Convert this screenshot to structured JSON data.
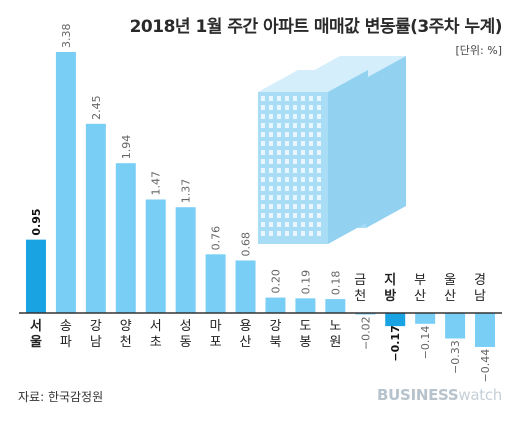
{
  "header": {
    "title": "2018년 1월 주간 아파트 매매값 변동률(3주차 누계)",
    "unit": "[단위: %]"
  },
  "footer": {
    "source": "자료: 한국감정원",
    "brand_bold": "BUSINESS",
    "brand_light": "watch"
  },
  "colors": {
    "highlight": "#1aa3e3",
    "normal": "#79cef6",
    "building": "#a9dcf5",
    "axis": "#333333"
  },
  "chart_data": {
    "type": "bar",
    "title": "2018년 1월 주간 아파트 매매값 변동률(3주차 누계)",
    "unit": "%",
    "categories": [
      "서울",
      "송파",
      "강남",
      "양천",
      "서초",
      "성동",
      "마포",
      "용산",
      "강북",
      "도봉",
      "노원",
      "금천",
      "지방",
      "부산",
      "울산",
      "경남"
    ],
    "values": [
      0.95,
      3.38,
      2.45,
      1.94,
      1.47,
      1.37,
      0.76,
      0.68,
      0.2,
      0.19,
      0.18,
      -0.02,
      -0.17,
      -0.14,
      -0.33,
      -0.44
    ],
    "value_labels": [
      "0.95",
      "3.38",
      "2.45",
      "1.94",
      "1.47",
      "1.37",
      "0.76",
      "0.68",
      "0.20",
      "0.19",
      "0.18",
      "−0.02",
      "−0.17",
      "−0.14",
      "−0.33",
      "−0.44"
    ],
    "highlighted": [
      "서울",
      "지방"
    ],
    "ylim": [
      -0.44,
      3.38
    ],
    "grid": false,
    "legend": "none"
  }
}
